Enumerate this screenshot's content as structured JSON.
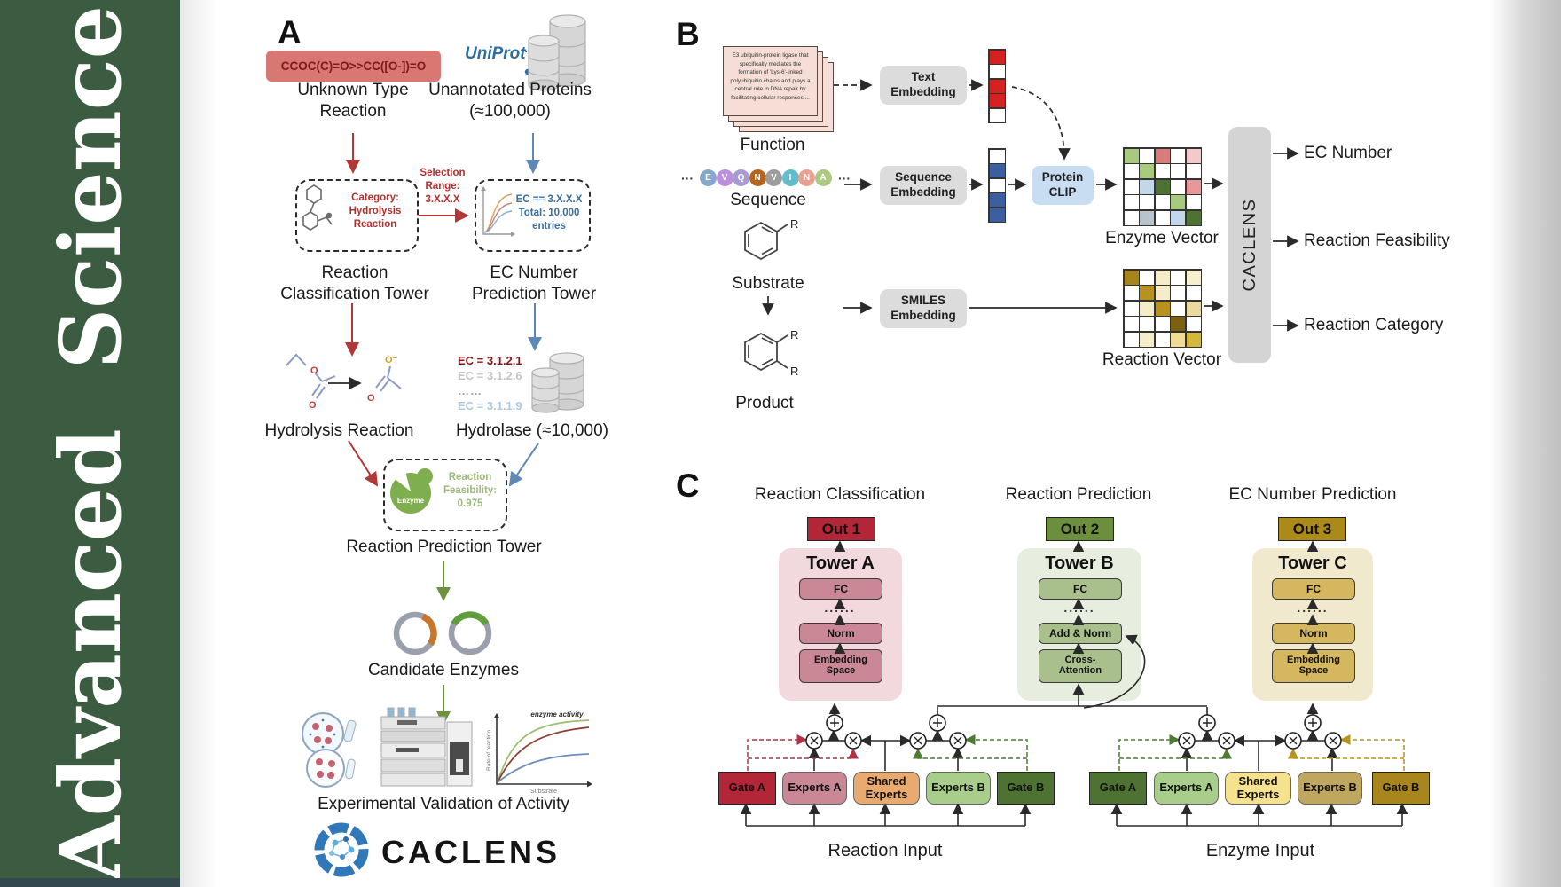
{
  "journal": {
    "title": "Advanced  Science"
  },
  "panel_a": {
    "label": "A",
    "smiles": "CCOC(C)=O>>CC([O-])=O",
    "unknown_reaction": "Unknown Type Reaction",
    "uniprot": "UniProt",
    "unannotated": "Unannotated Proteins (≈100,000)",
    "category": "Category: Hydrolysis Reaction",
    "selection": "Selection Range: 3.X.X.X",
    "ec_filter": "EC == 3.X.X.X Total: 10,000 entries",
    "classification_tower": "Reaction Classification Tower",
    "ec_tower": "EC Number Prediction Tower",
    "hydrolysis": "Hydrolysis Reaction",
    "ec_list": [
      "EC = 3.1.2.1",
      "EC = 3.1.2.6",
      "……",
      "EC = 3.1.1.9"
    ],
    "hydrolase": "Hydrolase (≈10,000)",
    "enzyme": "Enzyme",
    "feasibility": "Reaction Feasibility: 0.975",
    "prediction_tower": "Reaction Prediction Tower",
    "candidates": "Candidate Enzymes",
    "validation": "Experimental Validation of Activity",
    "logo": "CACLENS",
    "activity_plot": {
      "ylabel": "Rate of reaction",
      "xlabel": "Substrate",
      "annotation": "enzyme activity"
    }
  },
  "panel_b": {
    "label": "B",
    "function_text": "E3 ubiquitin-protein ligase that specifically mediates the formation of 'Lys-6'-linked polyubiquitin chains and plays a central role in DNA repair by facilitating cellular responses....",
    "function": "Function",
    "ellipsis": "···",
    "sequence_letters": [
      "E",
      "V",
      "Q",
      "N",
      "V",
      "I",
      "N",
      "A"
    ],
    "sequence_colors": [
      "#87a7cb",
      "#bb8ede",
      "#a89bd4",
      "#b5651f",
      "#9d9d9d",
      "#63bcc9",
      "#e8a292",
      "#abc97f"
    ],
    "sequence": "Sequence",
    "substrate": "Substrate",
    "product": "Product",
    "r_label": "R",
    "text_embedding": "Text Embedding",
    "sequence_embedding": "Sequence Embedding",
    "smiles_embedding": "SMILES Embedding",
    "protein_clip": "Protein CLIP",
    "text_vector": [
      "#d42222",
      "#ffffff",
      "#d42222",
      "#d42222",
      "#ffffff"
    ],
    "seq_vector": [
      "#ffffff",
      "#3c5fa0",
      "#ffffff",
      "#3c5fa0",
      "#3c5fa0"
    ],
    "enzyme_vector_label": "Enzyme Vector",
    "reaction_vector_label": "Reaction Vector",
    "enzyme_matrix": [
      [
        "#a9c97e",
        "#ffffff",
        "#d97b7b",
        "#ffffff",
        "#f2c9cc"
      ],
      [
        "#ffffff",
        "#a9c97e",
        "#ffffff",
        "#ffffff",
        "#ffffff"
      ],
      [
        "#ffffff",
        "#c4d6ea",
        "#4e7233",
        "#ffffff",
        "#e89898"
      ],
      [
        "#ffffff",
        "#ffffff",
        "#ffffff",
        "#a9c97e",
        "#ffffff"
      ],
      [
        "#ffffff",
        "#b8c4cc",
        "#ffffff",
        "#c4d6ea",
        "#4e7233"
      ]
    ],
    "reaction_matrix": [
      [
        "#a8851c",
        "#ffffff",
        "#f5ecc8",
        "#ffffff",
        "#f7efce"
      ],
      [
        "#ffffff",
        "#b8921e",
        "#f5ecc8",
        "#ffffff",
        "#ffffff"
      ],
      [
        "#ffffff",
        "#f5ecc8",
        "#b8921e",
        "#ffffff",
        "#ecd9a0"
      ],
      [
        "#ffffff",
        "#ffffff",
        "#ffffff",
        "#7a6210",
        "#ffffff"
      ],
      [
        "#ffffff",
        "#f5ecc8",
        "#ffffff",
        "#f0dc94",
        "#d4b83c"
      ]
    ],
    "caclens": "CACLENS",
    "outputs": [
      "EC Number",
      "Reaction Feasibility",
      "Reaction Category"
    ]
  },
  "panel_c": {
    "label": "C",
    "titles": [
      "Reaction Classification",
      "Reaction Prediction",
      "EC Number Prediction"
    ],
    "outs": [
      "Out 1",
      "Out 2",
      "Out 3"
    ],
    "towers": [
      {
        "name": "Tower A",
        "fc": "FC",
        "dots": "......",
        "norm": "Norm",
        "bottom": "Embedding Space"
      },
      {
        "name": "Tower B",
        "fc": "FC",
        "dots": "......",
        "norm": "Add & Norm",
        "bottom": "Cross-Attention"
      },
      {
        "name": "Tower C",
        "fc": "FC",
        "dots": "......",
        "norm": "Norm",
        "bottom": "Embedding Space"
      }
    ],
    "groups": [
      {
        "gate_a": "Gate A",
        "experts_a": "Experts A",
        "shared": "Shared Experts",
        "experts_b": "Experts B",
        "gate_b": "Gate B",
        "input": "Reaction Input"
      },
      {
        "gate_a": "Gate A",
        "experts_a": "Experts A",
        "shared": "Shared Experts",
        "experts_b": "Experts B",
        "gate_b": "Gate B",
        "input": "Enzyme Input"
      }
    ]
  }
}
